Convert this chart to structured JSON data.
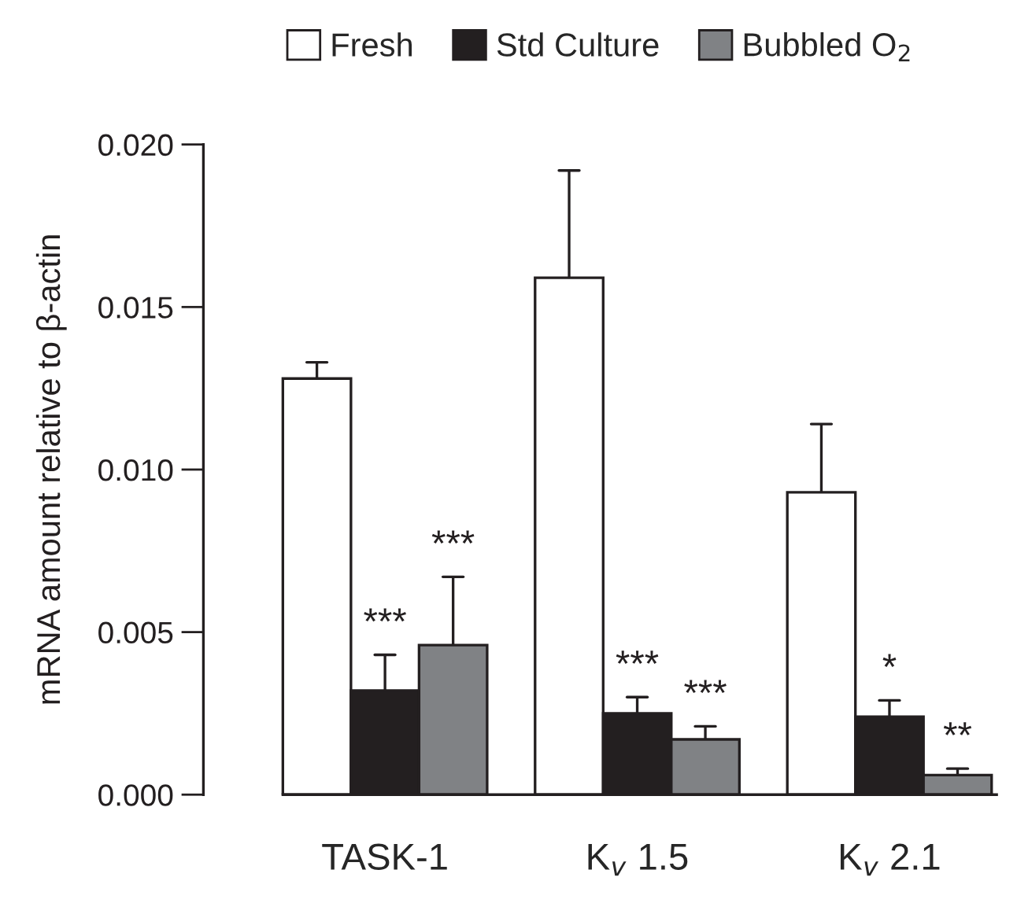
{
  "chart_data": {
    "type": "bar",
    "ylabel": "mRNA amount relative to β-actin",
    "categories": [
      "TASK-1",
      "K$_{v}$ 1.5",
      "K$_{v}$ 2.1"
    ],
    "series": [
      {
        "name": "Fresh",
        "color": "#ffffff",
        "values": [
          0.0128,
          0.0159,
          0.0093
        ],
        "errors": [
          [
            0.0128,
            0.0133
          ],
          [
            0.0159,
            0.0192
          ],
          [
            0.0093,
            0.0114
          ]
        ]
      },
      {
        "name": "Std Culture",
        "color": "#231f20",
        "values": [
          0.0032,
          0.0025,
          0.0024
        ],
        "errors": [
          [
            0.0032,
            0.0043
          ],
          [
            0.0025,
            0.003
          ],
          [
            0.0024,
            0.0029
          ]
        ],
        "value_labels": [
          "***",
          "***",
          "*"
        ]
      },
      {
        "name": "Bubbled O$_{2}$",
        "color": "#808285",
        "values": [
          0.0046,
          0.0017,
          0.0006
        ],
        "errors": [
          [
            0.0046,
            0.0067
          ],
          [
            0.0017,
            0.0021
          ],
          [
            0.0006,
            0.0008
          ]
        ],
        "value_labels": [
          "***",
          "***",
          "**"
        ]
      }
    ],
    "ylim": [
      0,
      0.02
    ],
    "yticks": [
      {
        "value": 0,
        "label": "0.000"
      },
      {
        "value": 0.005,
        "label": "0.005"
      },
      {
        "value": 0.01,
        "label": "0.010"
      },
      {
        "value": 0.015,
        "label": "0.015"
      },
      {
        "value": 0.02,
        "label": "0.020"
      }
    ],
    "grid": false,
    "legend": "top"
  }
}
